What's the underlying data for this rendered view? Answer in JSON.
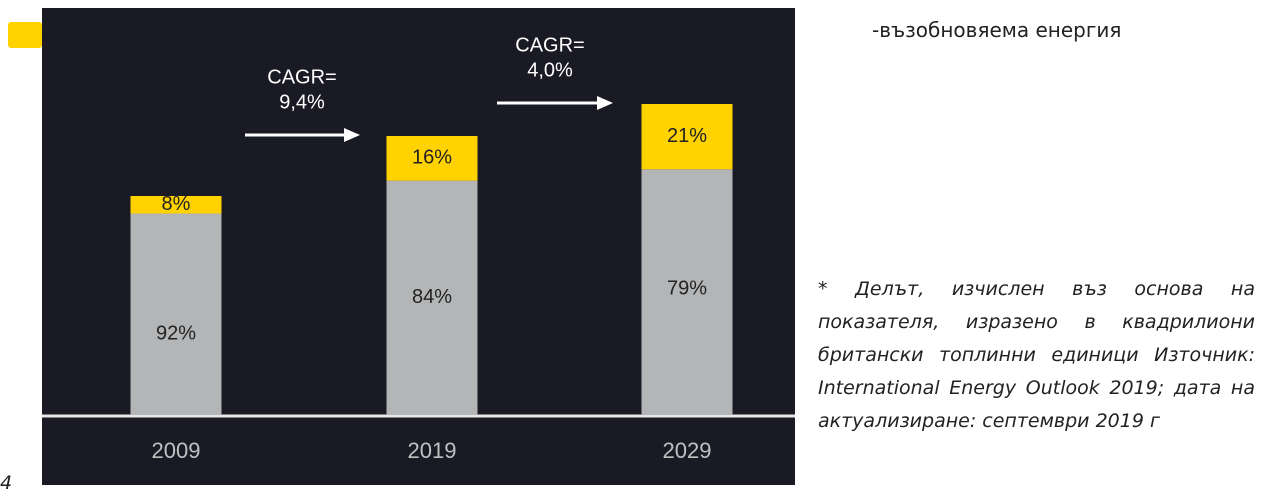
{
  "chart_data": {
    "type": "stacked_bar",
    "categories": [
      "2009",
      "2019",
      "2029"
    ],
    "series": [
      {
        "color": "#b3b5b7",
        "values": [
          92,
          84,
          79
        ],
        "value_labels": [
          "92%",
          "84%",
          "79%"
        ]
      },
      {
        "color": "#ffd200",
        "values": [
          8,
          16,
          21
        ],
        "value_labels": [
          "8%",
          "16%",
          "21%"
        ]
      }
    ],
    "annotations": [
      {
        "label": "CAGR=",
        "value": "9,4%"
      },
      {
        "label": "CAGR=",
        "value": "4,0%"
      }
    ]
  },
  "legend_label": "-възобновяема енергия",
  "footnote": "* Делът, изчислен въз основа на показателя, изразено в квадрилиони британски топлинни единици Източник: International Energy Outlook 2019; дата на актуализиране: септември 2019 г",
  "page_fragment": "4"
}
